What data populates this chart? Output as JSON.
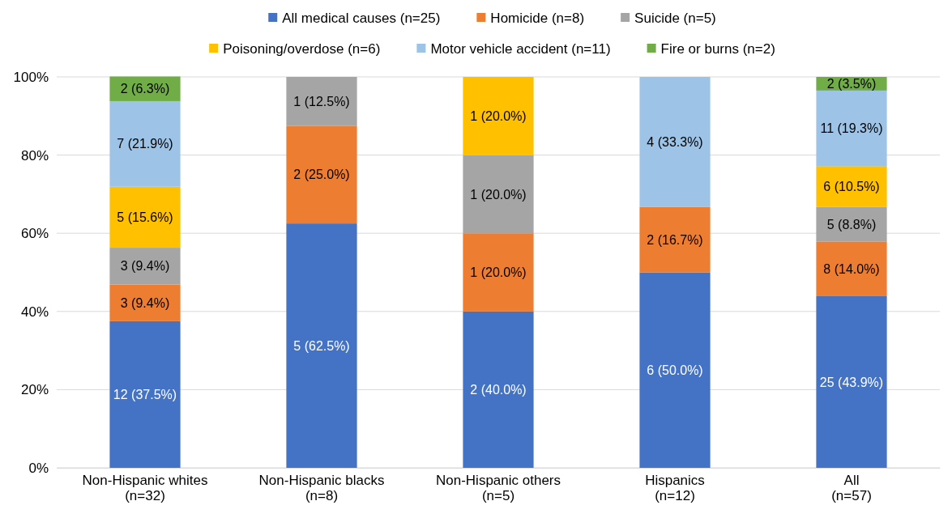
{
  "chart_data": {
    "type": "bar",
    "stacked": true,
    "categories": [
      "Non-Hispanic whites\n(n=32)",
      "Non-Hispanic blacks\n(n=8)",
      "Non-Hispanic others\n(n=5)",
      "Hispanics\n(n=12)",
      "All\n(n=57)"
    ],
    "ylim": [
      0,
      100
    ],
    "yticks": [
      {
        "value": 0,
        "label": "0%"
      },
      {
        "value": 20,
        "label": "20%"
      },
      {
        "value": 40,
        "label": "40%"
      },
      {
        "value": 60,
        "label": "60%"
      },
      {
        "value": 80,
        "label": "80%"
      },
      {
        "value": 100,
        "label": "100%"
      }
    ],
    "grid": "y",
    "legend": "top",
    "series": [
      {
        "name": "All medical causes (n=25)",
        "color": "#4472c4",
        "values": [
          37.5,
          62.5,
          40.0,
          50.0,
          43.9
        ],
        "value_labels": [
          "12 (37.5%)",
          "5 (62.5%)",
          "2 (40.0%)",
          "6 (50.0%)",
          "25 (43.9%)"
        ]
      },
      {
        "name": "Homicide (n=8)",
        "color": "#ed7d31",
        "values": [
          9.4,
          25.0,
          20.0,
          16.7,
          14.0
        ],
        "value_labels": [
          "3 (9.4%)",
          "2 (25.0%)",
          "1 (20.0%)",
          "2 (16.7%)",
          "8 (14.0%)"
        ]
      },
      {
        "name": "Suicide (n=5)",
        "color": "#a5a5a5",
        "values": [
          9.4,
          12.5,
          20.0,
          null,
          8.8
        ],
        "value_labels": [
          "3 (9.4%)",
          "1 (12.5%)",
          "1 (20.0%)",
          null,
          "5 (8.8%)"
        ]
      },
      {
        "name": "Poisoning/overdose (n=6)",
        "color": "#ffc000",
        "values": [
          15.6,
          null,
          20.0,
          null,
          10.5
        ],
        "value_labels": [
          "5 (15.6%)",
          null,
          "1 (20.0%)",
          null,
          "6 (10.5%)"
        ]
      },
      {
        "name": "Motor vehicle accident (n=11)",
        "color": "#9dc3e6",
        "values": [
          21.9,
          null,
          null,
          33.3,
          19.3
        ],
        "value_labels": [
          "7 (21.9%)",
          null,
          null,
          "4 (33.3%)",
          "11 (19.3%)"
        ]
      },
      {
        "name": "Fire or burns (n=2)",
        "color": "#70ad47",
        "values": [
          6.3,
          null,
          null,
          null,
          3.5
        ],
        "value_labels": [
          "2 (6.3%)",
          null,
          null,
          null,
          "2 (3.5%)"
        ]
      }
    ]
  }
}
